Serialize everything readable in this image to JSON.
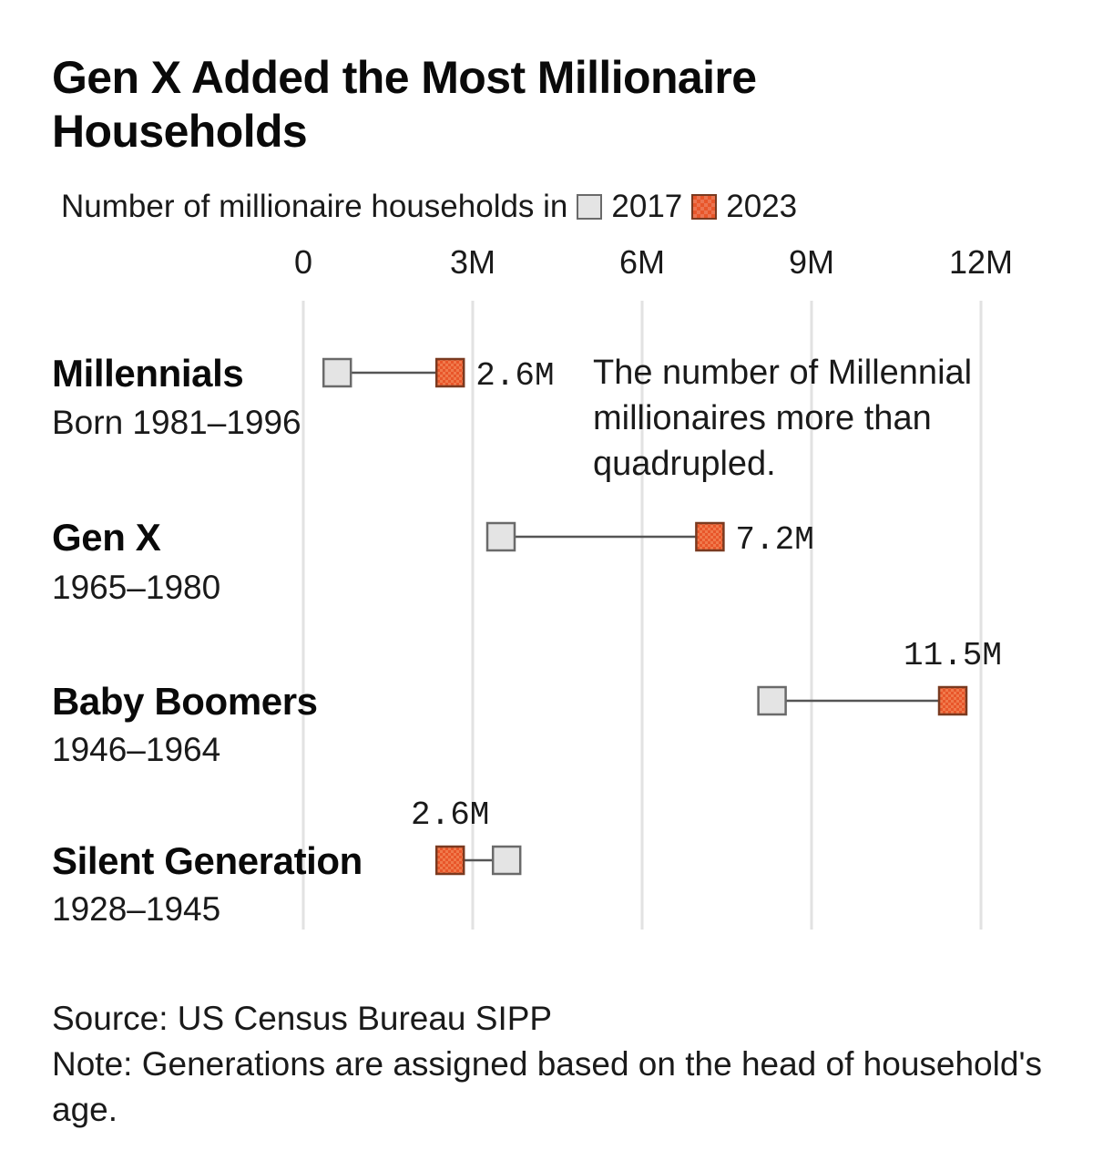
{
  "title": "Gen X Added the Most Millionaire Households",
  "subtitle": "Number of millionaire households in",
  "legend": [
    {
      "label": "2017",
      "color": "#e4e4e4"
    },
    {
      "label": "2023",
      "color": "#e8562a"
    }
  ],
  "annotation": "The number of Millennial millionaires more than quadrupled.",
  "footer": {
    "source": "Source: US Census Bureau SIPP",
    "note": "Note: Generations are assigned based on the head of household's age."
  },
  "chart_data": {
    "type": "dot-range",
    "xlim": [
      0,
      12
    ],
    "x_ticks": [
      {
        "value": 0,
        "label": "0"
      },
      {
        "value": 3,
        "label": "3M"
      },
      {
        "value": 6,
        "label": "6M"
      },
      {
        "value": 9,
        "label": "9M"
      },
      {
        "value": 12,
        "label": "12M"
      }
    ],
    "grid": true,
    "legend_position": "top-left",
    "series_names": [
      "2017",
      "2023"
    ],
    "colors": {
      "2017": "#e4e4e4",
      "2023": "#e8562a",
      "connector": "#555555"
    },
    "rows": [
      {
        "name": "Millennials",
        "years": "Born 1981–1996",
        "v2017": 0.6,
        "v2023": 2.6,
        "label": "2.6M"
      },
      {
        "name": "Gen X",
        "years": "1965–1980",
        "v2017": 3.5,
        "v2023": 7.2,
        "label": "7.2M"
      },
      {
        "name": "Baby Boomers",
        "years": "1946–1964",
        "v2017": 8.3,
        "v2023": 11.5,
        "label": "11.5M"
      },
      {
        "name": "Silent Generation",
        "years": "1928–1945",
        "v2017": 3.6,
        "v2023": 2.6,
        "label": "2.6M"
      }
    ]
  }
}
